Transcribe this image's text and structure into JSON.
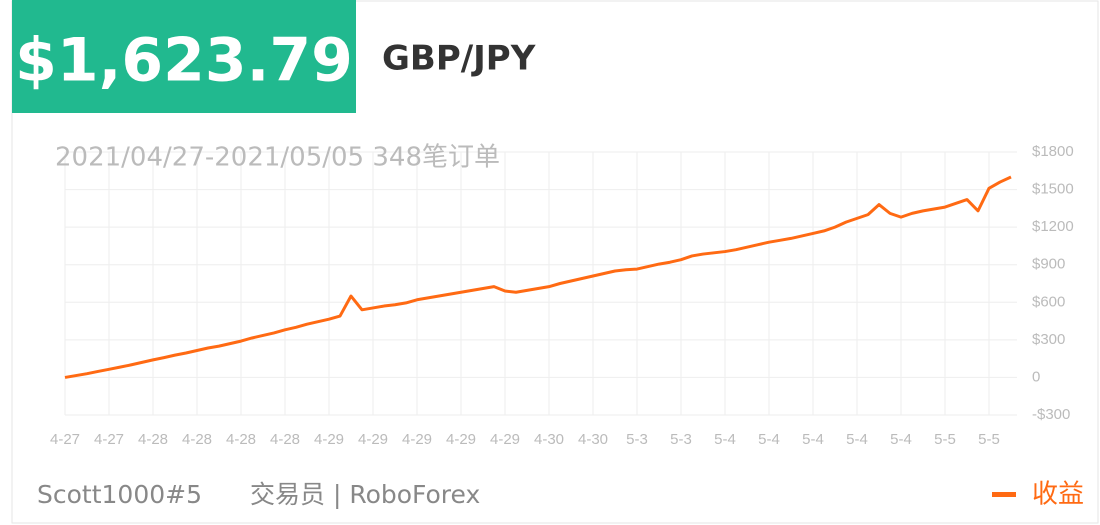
{
  "header": {
    "amount": "$1,623.79",
    "pair": "GBP/JPY"
  },
  "chart_data": {
    "type": "line",
    "subtitle": "2021/04/27-2021/05/05 348笔订单",
    "categories": [
      "4-27",
      null,
      null,
      null,
      "4-27",
      null,
      null,
      null,
      "4-28",
      null,
      null,
      null,
      "4-28",
      null,
      null,
      null,
      "4-28",
      null,
      null,
      null,
      "4-28",
      null,
      null,
      null,
      "4-29",
      null,
      null,
      null,
      "4-29",
      null,
      null,
      null,
      "4-29",
      null,
      null,
      null,
      "4-29",
      null,
      null,
      null,
      "4-29",
      null,
      null,
      null,
      "4-30",
      null,
      null,
      null,
      "4-30",
      null,
      null,
      null,
      "5-3",
      null,
      null,
      null,
      "5-3",
      null,
      null,
      null,
      "5-4",
      null,
      null,
      null,
      "5-4",
      null,
      null,
      null,
      "5-4",
      null,
      null,
      null,
      "5-4",
      null,
      null,
      null,
      "5-4",
      null,
      null,
      null,
      "5-5",
      null,
      null,
      null,
      "5-5",
      null,
      null
    ],
    "series": [
      {
        "name": "收益",
        "color": "#ff6a13",
        "values": [
          0,
          15,
          30,
          48,
          65,
          82,
          100,
          120,
          140,
          158,
          178,
          195,
          215,
          235,
          250,
          270,
          290,
          315,
          335,
          355,
          380,
          400,
          425,
          445,
          465,
          490,
          650,
          540,
          555,
          570,
          580,
          595,
          620,
          635,
          650,
          665,
          680,
          695,
          710,
          725,
          690,
          680,
          695,
          710,
          725,
          750,
          770,
          790,
          810,
          830,
          850,
          860,
          865,
          885,
          905,
          920,
          940,
          970,
          985,
          995,
          1005,
          1020,
          1040,
          1060,
          1080,
          1095,
          1110,
          1130,
          1150,
          1170,
          1200,
          1240,
          1270,
          1300,
          1380,
          1310,
          1280,
          1310,
          1330,
          1345,
          1360,
          1390,
          1420,
          1330,
          1510,
          1560,
          1600
        ]
      }
    ],
    "ylim": [
      -300,
      1800
    ],
    "yticks": [
      {
        "value": -300,
        "label": "-$300"
      },
      0,
      {
        "value": 300,
        "label": "$300"
      },
      {
        "value": 600,
        "label": "$600"
      },
      {
        "value": 900,
        "label": "$900"
      },
      {
        "value": 1200,
        "label": "$1200"
      },
      {
        "value": 1500,
        "label": "$1500"
      },
      {
        "value": 1800,
        "label": "$1800"
      }
    ],
    "grid": true
  },
  "footer": {
    "trader": "Scott1000#5",
    "role": "交易员 | RoboForex"
  }
}
